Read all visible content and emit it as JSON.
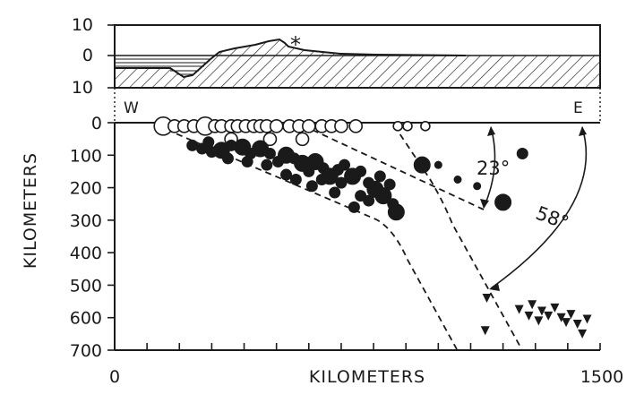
{
  "profile": {
    "y_ticks": [
      "10",
      "0",
      "10"
    ],
    "volcano_marker": "*"
  },
  "section": {
    "west_label": "W",
    "east_label": "E",
    "y_axis_title": "KILOMETERS",
    "x_axis_title": "KILOMETERS",
    "y_ticks": [
      "0",
      "100",
      "200",
      "300",
      "400",
      "500",
      "600",
      "700"
    ],
    "x_ticks": [
      "0",
      "1500"
    ],
    "angles": {
      "shallow": "23°",
      "steep": "58°"
    }
  },
  "events": {
    "shallow_open_circles": [
      {
        "d": 150,
        "z": 5,
        "s": 3
      },
      {
        "d": 185,
        "z": 5,
        "s": 2
      },
      {
        "d": 215,
        "z": 5,
        "s": 2
      },
      {
        "d": 245,
        "z": 5,
        "s": 2
      },
      {
        "d": 280,
        "z": 5,
        "s": 3
      },
      {
        "d": 310,
        "z": 5,
        "s": 2
      },
      {
        "d": 330,
        "z": 5,
        "s": 2
      },
      {
        "d": 360,
        "z": 5,
        "s": 2
      },
      {
        "d": 380,
        "z": 5,
        "s": 2
      },
      {
        "d": 405,
        "z": 5,
        "s": 2
      },
      {
        "d": 430,
        "z": 5,
        "s": 2
      },
      {
        "d": 450,
        "z": 5,
        "s": 2
      },
      {
        "d": 470,
        "z": 5,
        "s": 2
      },
      {
        "d": 500,
        "z": 5,
        "s": 2
      },
      {
        "d": 540,
        "z": 5,
        "s": 2
      },
      {
        "d": 570,
        "z": 5,
        "s": 2
      },
      {
        "d": 600,
        "z": 5,
        "s": 2
      },
      {
        "d": 640,
        "z": 5,
        "s": 2
      },
      {
        "d": 670,
        "z": 5,
        "s": 2
      },
      {
        "d": 700,
        "z": 5,
        "s": 2
      },
      {
        "d": 745,
        "z": 5,
        "s": 2
      },
      {
        "d": 875,
        "z": 5,
        "s": 1
      },
      {
        "d": 905,
        "z": 5,
        "s": 1
      },
      {
        "d": 960,
        "z": 5,
        "s": 1
      },
      {
        "d": 360,
        "z": 45,
        "s": 2
      },
      {
        "d": 480,
        "z": 45,
        "s": 2
      },
      {
        "d": 580,
        "z": 45,
        "s": 2
      }
    ],
    "intermediate_filled_circles": [
      {
        "d": 240,
        "z": 70,
        "s": 2
      },
      {
        "d": 270,
        "z": 80,
        "s": 2
      },
      {
        "d": 300,
        "z": 90,
        "s": 2
      },
      {
        "d": 330,
        "z": 85,
        "s": 3
      },
      {
        "d": 360,
        "z": 70,
        "s": 2
      },
      {
        "d": 395,
        "z": 75,
        "s": 3
      },
      {
        "d": 420,
        "z": 95,
        "s": 2
      },
      {
        "d": 450,
        "z": 80,
        "s": 3
      },
      {
        "d": 480,
        "z": 95,
        "s": 2
      },
      {
        "d": 505,
        "z": 120,
        "s": 2
      },
      {
        "d": 530,
        "z": 100,
        "s": 3
      },
      {
        "d": 555,
        "z": 110,
        "s": 2
      },
      {
        "d": 580,
        "z": 125,
        "s": 3
      },
      {
        "d": 600,
        "z": 150,
        "s": 2
      },
      {
        "d": 620,
        "z": 120,
        "s": 3
      },
      {
        "d": 645,
        "z": 140,
        "s": 2
      },
      {
        "d": 665,
        "z": 165,
        "s": 3
      },
      {
        "d": 690,
        "z": 145,
        "s": 2
      },
      {
        "d": 710,
        "z": 130,
        "s": 2
      },
      {
        "d": 735,
        "z": 165,
        "s": 3
      },
      {
        "d": 760,
        "z": 150,
        "s": 2
      },
      {
        "d": 785,
        "z": 185,
        "s": 2
      },
      {
        "d": 805,
        "z": 205,
        "s": 3
      },
      {
        "d": 830,
        "z": 225,
        "s": 3
      },
      {
        "d": 850,
        "z": 190,
        "s": 2
      },
      {
        "d": 860,
        "z": 250,
        "s": 2
      },
      {
        "d": 870,
        "z": 275,
        "s": 3
      },
      {
        "d": 760,
        "z": 225,
        "s": 2
      },
      {
        "d": 700,
        "z": 185,
        "s": 2
      },
      {
        "d": 640,
        "z": 175,
        "s": 2
      },
      {
        "d": 560,
        "z": 175,
        "s": 2
      },
      {
        "d": 470,
        "z": 130,
        "s": 2
      },
      {
        "d": 410,
        "z": 120,
        "s": 2
      },
      {
        "d": 290,
        "z": 60,
        "s": 2
      },
      {
        "d": 950,
        "z": 130,
        "s": 3
      },
      {
        "d": 1060,
        "z": 175,
        "s": 1
      },
      {
        "d": 1120,
        "z": 195,
        "s": 1
      },
      {
        "d": 1200,
        "z": 245,
        "s": 3
      },
      {
        "d": 1260,
        "z": 95,
        "s": 2
      },
      {
        "d": 1000,
        "z": 130,
        "s": 1
      },
      {
        "d": 530,
        "z": 160,
        "s": 2
      },
      {
        "d": 350,
        "z": 110,
        "s": 2
      },
      {
        "d": 610,
        "z": 195,
        "s": 2
      },
      {
        "d": 820,
        "z": 165,
        "s": 2
      },
      {
        "d": 740,
        "z": 260,
        "s": 2
      },
      {
        "d": 680,
        "z": 215,
        "s": 2
      },
      {
        "d": 785,
        "z": 240,
        "s": 2
      }
    ],
    "deep_triangles": [
      {
        "d": 1150,
        "z": 540
      },
      {
        "d": 1145,
        "z": 640
      },
      {
        "d": 1250,
        "z": 575
      },
      {
        "d": 1290,
        "z": 560
      },
      {
        "d": 1320,
        "z": 580
      },
      {
        "d": 1340,
        "z": 595
      },
      {
        "d": 1360,
        "z": 570
      },
      {
        "d": 1380,
        "z": 600
      },
      {
        "d": 1395,
        "z": 615
      },
      {
        "d": 1410,
        "z": 590
      },
      {
        "d": 1430,
        "z": 620
      },
      {
        "d": 1445,
        "z": 650
      },
      {
        "d": 1310,
        "z": 610
      },
      {
        "d": 1280,
        "z": 595
      },
      {
        "d": 1460,
        "z": 605
      }
    ]
  }
}
